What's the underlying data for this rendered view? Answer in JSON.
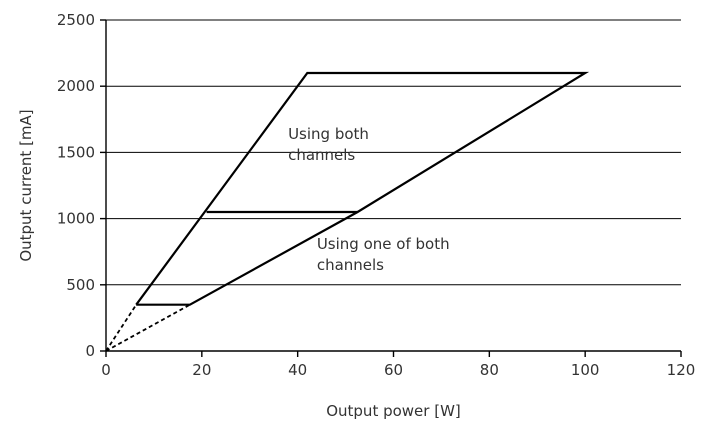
{
  "chart_data": {
    "type": "line",
    "xlabel": "Output power [W]",
    "ylabel": "Output current [mA]",
    "xlim": [
      0,
      120
    ],
    "ylim": [
      0,
      2500
    ],
    "xticks": [
      0,
      20,
      40,
      60,
      80,
      100,
      120
    ],
    "yticks": [
      0,
      500,
      1000,
      1500,
      2000,
      2500
    ],
    "grid": "horizontal",
    "series": [
      {
        "style": "solid",
        "points": [
          [
            6.3,
            350
          ],
          [
            17.5,
            350
          ],
          [
            52.5,
            1050
          ],
          [
            100,
            2100
          ],
          [
            42,
            2100
          ],
          [
            6.3,
            350
          ]
        ]
      },
      {
        "style": "solid",
        "points": [
          [
            21,
            1050
          ],
          [
            52.5,
            1050
          ]
        ]
      },
      {
        "style": "dashed",
        "points": [
          [
            0,
            0
          ],
          [
            6.3,
            350
          ]
        ]
      },
      {
        "style": "dashed",
        "points": [
          [
            0,
            0
          ],
          [
            17.5,
            350
          ]
        ]
      }
    ],
    "annotations": [
      {
        "lines": [
          "Using both",
          "channels"
        ],
        "x": 38,
        "y": 1600
      },
      {
        "lines": [
          "Using one of both",
          "channels"
        ],
        "x": 44,
        "y": 770
      }
    ],
    "colors": {
      "line": "#000000",
      "text": "#333333"
    }
  }
}
